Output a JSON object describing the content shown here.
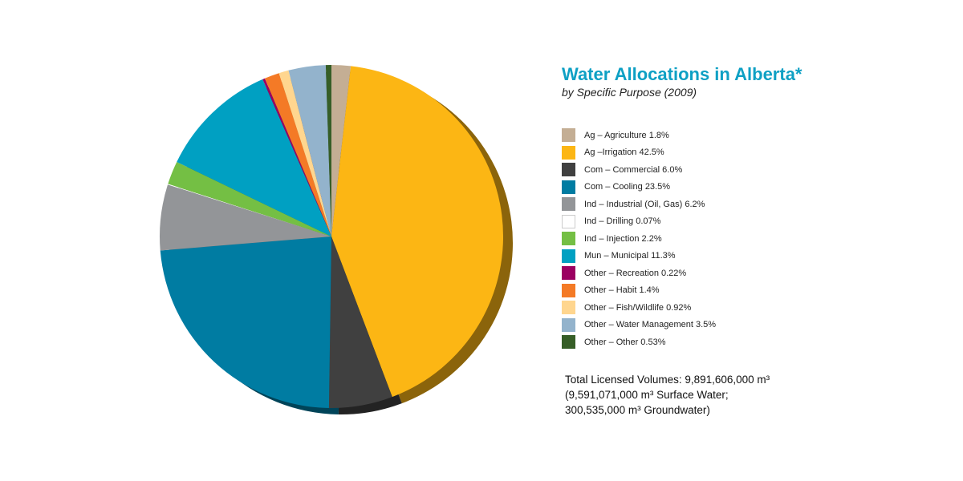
{
  "chart_data": {
    "type": "pie",
    "title": "Water Allocations in Alberta*",
    "subtitle": "by Specific Purpose (2009)",
    "start": "12 o'clock, clockwise",
    "slices": [
      {
        "label": "Ag – Agriculture 1.8%",
        "value": 1.8,
        "color": "#c4ae94"
      },
      {
        "label": "Ag –Irrigation 42.5%",
        "value": 42.5,
        "color": "#fcb614"
      },
      {
        "label": "Com – Commercial 6.0%",
        "value": 6.0,
        "color": "#404040"
      },
      {
        "label": "Com – Cooling 23.5%",
        "value": 23.5,
        "color": "#007ca2"
      },
      {
        "label": "Ind – Industrial (Oil, Gas) 6.2%",
        "value": 6.2,
        "color": "#939598"
      },
      {
        "label": "Ind – Drilling 0.07%",
        "value": 0.07,
        "color": "#ffffff"
      },
      {
        "label": "Ind – Injection 2.2%",
        "value": 2.2,
        "color": "#74bf44"
      },
      {
        "label": "Mun – Municipal 11.3%",
        "value": 11.3,
        "color": "#00a0c2"
      },
      {
        "label": "Other – Recreation 0.22%",
        "value": 0.22,
        "color": "#9b0061"
      },
      {
        "label": "Other – Habit 1.4%",
        "value": 1.4,
        "color": "#f47a26"
      },
      {
        "label": "Other – Fish/Wildlife 0.92%",
        "value": 0.92,
        "color": "#ffd68f"
      },
      {
        "label": "Other – Water Management 3.5%",
        "value": 3.5,
        "color": "#93b3cc"
      },
      {
        "label": "Other – Other 0.53%",
        "value": 0.53,
        "color": "#365e27"
      }
    ],
    "legend": "right"
  },
  "note": {
    "line1": "Total Licensed Volumes: 9,891,606,000 m³",
    "line2": "(9,591,071,000 m³ Surface Water;",
    "line3": "300,535,000 m³ Groundwater)"
  }
}
